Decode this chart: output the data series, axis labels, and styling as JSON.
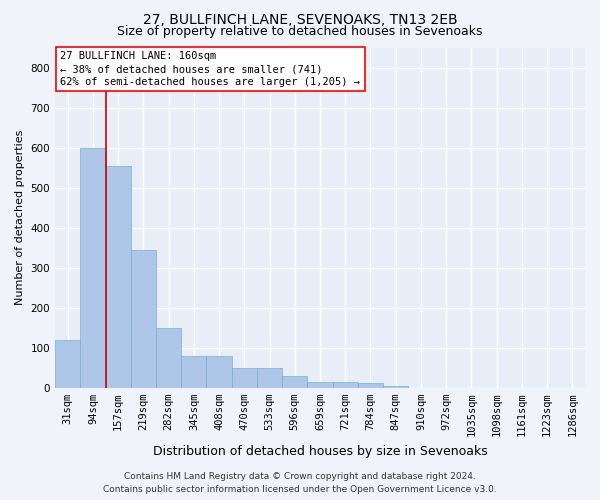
{
  "title": "27, BULLFINCH LANE, SEVENOAKS, TN13 2EB",
  "subtitle": "Size of property relative to detached houses in Sevenoaks",
  "xlabel": "Distribution of detached houses by size in Sevenoaks",
  "ylabel": "Number of detached properties",
  "categories": [
    "31sqm",
    "94sqm",
    "157sqm",
    "219sqm",
    "282sqm",
    "345sqm",
    "408sqm",
    "470sqm",
    "533sqm",
    "596sqm",
    "659sqm",
    "721sqm",
    "784sqm",
    "847sqm",
    "910sqm",
    "972sqm",
    "1035sqm",
    "1098sqm",
    "1161sqm",
    "1223sqm",
    "1286sqm"
  ],
  "values": [
    120,
    600,
    555,
    345,
    150,
    78,
    78,
    50,
    50,
    30,
    14,
    13,
    12,
    5,
    0,
    0,
    0,
    0,
    0,
    0,
    0
  ],
  "bar_color": "#aec6e8",
  "bar_edge_color": "#7aaed4",
  "annotation_text_line1": "27 BULLFINCH LANE: 160sqm",
  "annotation_text_line2": "← 38% of detached houses are smaller (741)",
  "annotation_text_line3": "62% of semi-detached houses are larger (1,205) →",
  "vline_color": "#cc0000",
  "footer1": "Contains HM Land Registry data © Crown copyright and database right 2024.",
  "footer2": "Contains public sector information licensed under the Open Government Licence v3.0.",
  "background_color": "#e8eef8",
  "grid_color": "#ffffff",
  "fig_background": "#f0f4fa",
  "ylim": [
    0,
    850
  ],
  "yticks": [
    0,
    100,
    200,
    300,
    400,
    500,
    600,
    700,
    800
  ],
  "title_fontsize": 10,
  "subtitle_fontsize": 9,
  "xlabel_fontsize": 9,
  "ylabel_fontsize": 8,
  "tick_fontsize": 7.5,
  "annotation_fontsize": 7.5,
  "footer_fontsize": 6.5,
  "vline_x_index": 1.5
}
